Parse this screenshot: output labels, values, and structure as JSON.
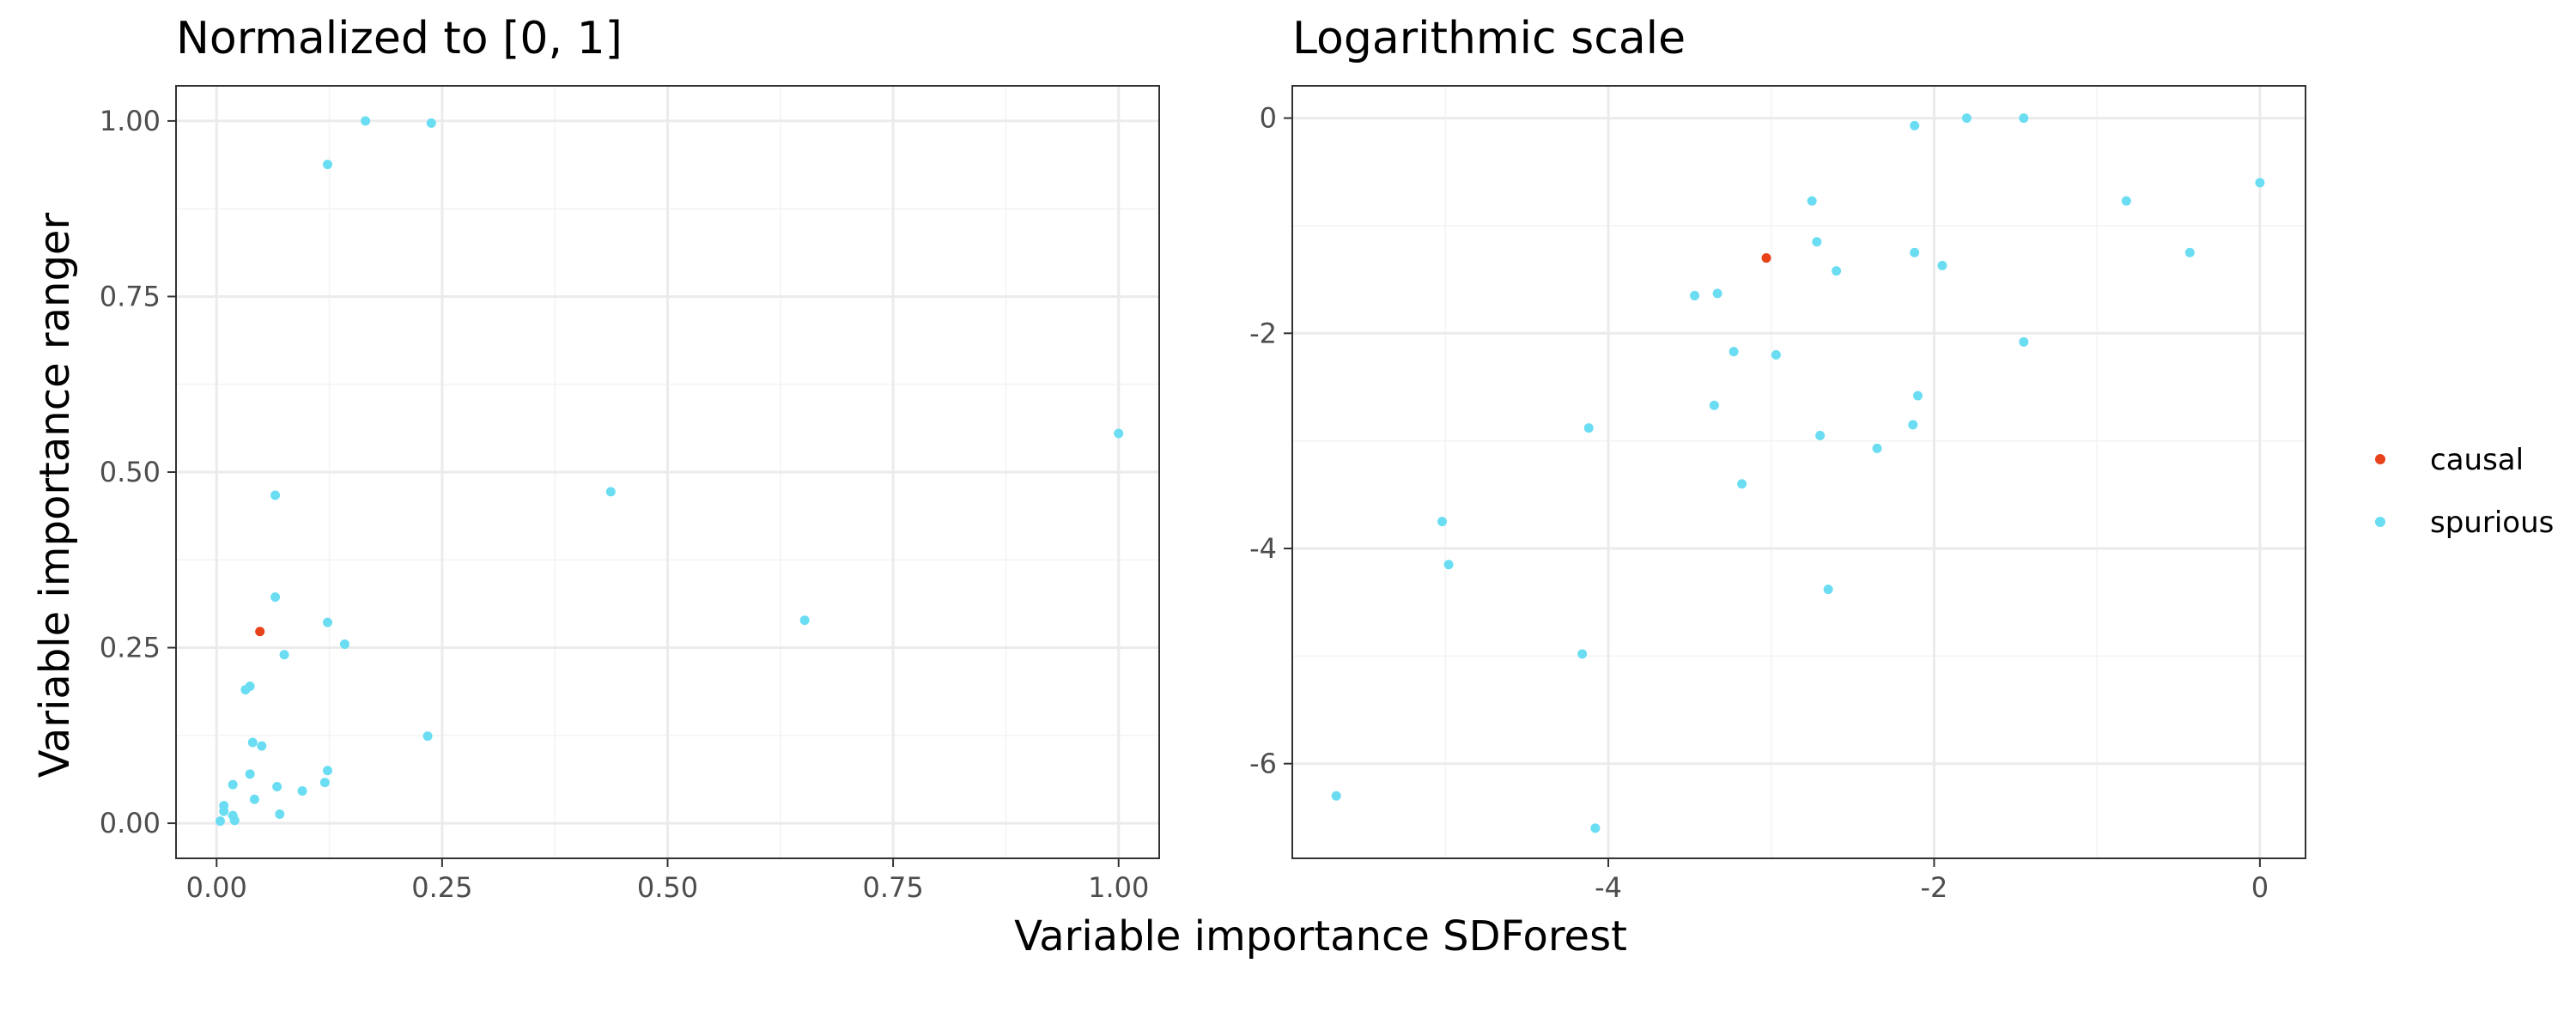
{
  "figure": {
    "xlabel": "Variable importance SDForest",
    "ylabel": "Variable importance ranger"
  },
  "legend": {
    "placement": "right",
    "entries": [
      {
        "name": "causal",
        "color": "#E8421A"
      },
      {
        "name": "spurious",
        "color": "#6ADDF2"
      }
    ]
  },
  "chart_data": [
    {
      "type": "scatter",
      "title": "Normalized to [0, 1]",
      "xlim": [
        -0.045,
        1.045
      ],
      "ylim": [
        -0.05,
        1.05
      ],
      "x_ticks": [
        0,
        0.25,
        0.5,
        0.75,
        1
      ],
      "x_tick_labels": [
        "0.00",
        "0.25",
        "0.50",
        "0.75",
        "1.00"
      ],
      "y_ticks": [
        0,
        0.25,
        0.5,
        0.75,
        1
      ],
      "y_tick_labels": [
        "0.00",
        "0.25",
        "0.50",
        "0.75",
        "1.00"
      ],
      "grid": true,
      "series": [
        {
          "name": "causal",
          "points": [
            [
              0.048,
              0.273
            ]
          ]
        },
        {
          "name": "spurious",
          "points": [
            [
              0.165,
              1.0
            ],
            [
              0.238,
              0.997
            ],
            [
              0.123,
              0.938
            ],
            [
              1.0,
              0.555
            ],
            [
              0.065,
              0.467
            ],
            [
              0.437,
              0.472
            ],
            [
              0.065,
              0.322
            ],
            [
              0.123,
              0.286
            ],
            [
              0.652,
              0.289
            ],
            [
              0.142,
              0.255
            ],
            [
              0.075,
              0.24
            ],
            [
              0.037,
              0.195
            ],
            [
              0.032,
              0.19
            ],
            [
              0.04,
              0.115
            ],
            [
              0.05,
              0.11
            ],
            [
              0.234,
              0.124
            ],
            [
              0.123,
              0.075
            ],
            [
              0.037,
              0.07
            ],
            [
              0.067,
              0.052
            ],
            [
              0.018,
              0.055
            ],
            [
              0.12,
              0.058
            ],
            [
              0.095,
              0.046
            ],
            [
              0.042,
              0.034
            ],
            [
              0.008,
              0.025
            ],
            [
              0.008,
              0.017
            ],
            [
              0.07,
              0.013
            ],
            [
              0.018,
              0.011
            ],
            [
              0.02,
              0.004
            ],
            [
              0.004,
              0.003
            ]
          ]
        }
      ]
    },
    {
      "type": "scatter",
      "title": "Logarithmic scale",
      "xlim": [
        -5.94,
        0.28
      ],
      "ylim": [
        -6.88,
        0.3
      ],
      "x_ticks": [
        -4,
        -2,
        0
      ],
      "x_tick_labels": [
        "-4",
        "-2",
        "0"
      ],
      "y_ticks": [
        -6,
        -4,
        -2,
        0
      ],
      "y_tick_labels": [
        "-6",
        "-4",
        "-2",
        "0"
      ],
      "grid": true,
      "series": [
        {
          "name": "causal",
          "points": [
            [
              -3.03,
              -1.3
            ]
          ]
        },
        {
          "name": "spurious",
          "points": [
            [
              -2.12,
              -0.07
            ],
            [
              -1.8,
              0.0
            ],
            [
              -1.45,
              0.0
            ],
            [
              0.0,
              -0.6
            ],
            [
              -0.82,
              -0.77
            ],
            [
              -2.75,
              -0.77
            ],
            [
              -2.72,
              -1.15
            ],
            [
              -2.12,
              -1.25
            ],
            [
              -0.43,
              -1.25
            ],
            [
              -1.95,
              -1.37
            ],
            [
              -2.6,
              -1.42
            ],
            [
              -3.47,
              -1.65
            ],
            [
              -3.33,
              -1.63
            ],
            [
              -3.23,
              -2.17
            ],
            [
              -2.97,
              -2.2
            ],
            [
              -1.45,
              -2.08
            ],
            [
              -3.35,
              -2.67
            ],
            [
              -2.1,
              -2.58
            ],
            [
              -4.12,
              -2.88
            ],
            [
              -2.7,
              -2.95
            ],
            [
              -2.13,
              -2.85
            ],
            [
              -2.35,
              -3.07
            ],
            [
              -3.18,
              -3.4
            ],
            [
              -5.02,
              -3.75
            ],
            [
              -4.98,
              -4.15
            ],
            [
              -2.65,
              -4.38
            ],
            [
              -4.16,
              -4.98
            ],
            [
              -5.67,
              -6.3
            ],
            [
              -4.08,
              -6.6
            ]
          ]
        }
      ]
    }
  ]
}
